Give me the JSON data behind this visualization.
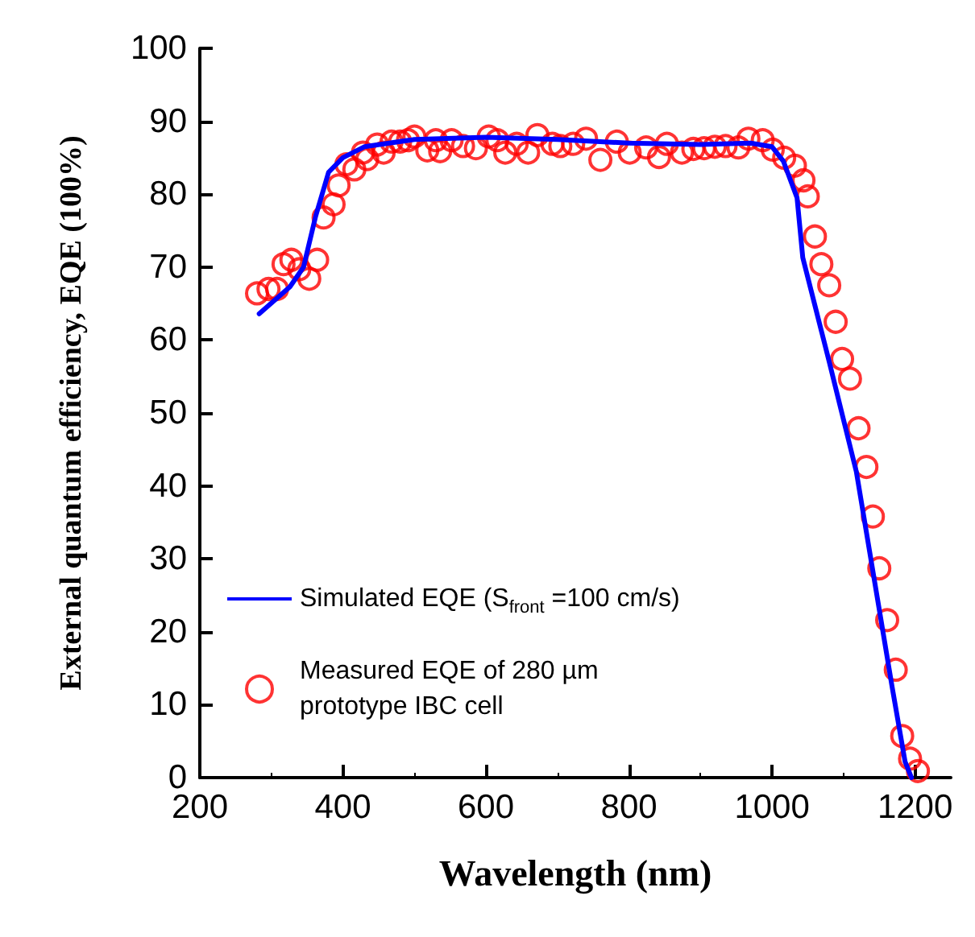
{
  "chart_data": {
    "type": "scatter",
    "xlabel": "Wavelength (nm)",
    "ylabel": "External quantum efficiency, EQE (100%)",
    "xlim": [
      200,
      1250
    ],
    "ylim": [
      0,
      100
    ],
    "xticks": [
      200,
      400,
      600,
      800,
      1000,
      1200
    ],
    "yticks": [
      0,
      10,
      20,
      30,
      40,
      50,
      60,
      70,
      80,
      90,
      100
    ],
    "grid": false,
    "legend": "bottom left",
    "series": [
      {
        "name": "Simulated EQE (S$_{front}$ =100 cm/s)",
        "type": "line",
        "color": "#0000ff",
        "marker": "none",
        "line_style": "solid",
        "x": [
          283,
          326,
          345,
          362,
          380,
          400,
          430,
          500,
          600,
          700,
          800,
          900,
          970,
          1000,
          1016,
          1035,
          1043,
          1080,
          1118,
          1168,
          1186,
          1195
        ],
        "values": [
          63.6,
          67.3,
          70,
          77,
          83,
          85,
          86.5,
          87.5,
          87.8,
          87.5,
          87,
          86.8,
          87,
          86.5,
          84.5,
          79.5,
          71.3,
          57,
          41.9,
          12.4,
          2.2,
          0
        ]
      },
      {
        "name": "Measured EQE of 280 µm\nprototype IBC cell",
        "color": "#ff0000",
        "marker": "circle",
        "x": [
          280,
          296,
          308,
          317,
          328,
          339,
          353,
          364,
          373,
          387,
          394,
          405,
          416,
          428,
          434,
          448,
          457,
          468,
          480,
          491,
          500,
          518,
          530,
          536,
          552,
          568,
          586,
          604,
          616,
          627,
          643,
          659,
          672,
          693,
          704,
          722,
          740,
          760,
          783,
          801,
          824,
          842,
          853,
          874,
          890,
          905,
          920,
          935,
          953,
          967,
          987,
          1001,
          1017,
          1032,
          1044,
          1050,
          1060,
          1069,
          1080,
          1089,
          1098,
          1109,
          1121,
          1132,
          1141,
          1150,
          1161,
          1173,
          1182,
          1193,
          1204
        ],
        "values": [
          66.4,
          67,
          67,
          70.4,
          71,
          69.7,
          68.4,
          71,
          76.8,
          78.6,
          81.2,
          84.1,
          83.4,
          85.7,
          84.8,
          86.8,
          85.7,
          87.2,
          87.2,
          87.4,
          87.9,
          86,
          87.4,
          85.9,
          87.4,
          86.6,
          86.3,
          87.9,
          87.4,
          85.7,
          86.9,
          85.7,
          88.1,
          86.9,
          86.6,
          86.9,
          87.6,
          84.7,
          87.2,
          85.7,
          86.4,
          85.1,
          86.9,
          85.7,
          86.2,
          86.3,
          86.5,
          86.6,
          86.4,
          87.6,
          87.4,
          86.1,
          85,
          83.9,
          81.9,
          79.7,
          74.2,
          70.4,
          67.5,
          62.5,
          57.4,
          54.7,
          47.9,
          42.6,
          35.8,
          28.7,
          21.6,
          14.8,
          5.7,
          2.6,
          0.9
        ]
      }
    ]
  }
}
